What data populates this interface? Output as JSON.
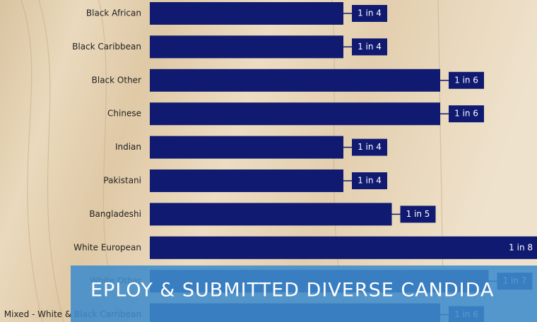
{
  "chart_data": {
    "type": "hbar",
    "categories": [
      "Black African",
      "Black Caribbean",
      "Black Other",
      "Chinese",
      "Indian",
      "Pakistani",
      "Bangladeshi",
      "White European",
      "White Other",
      "Mixed - White & Black Carribean"
    ],
    "values": [
      4,
      4,
      6,
      6,
      4,
      4,
      5,
      8,
      7,
      6
    ],
    "value_labels": [
      "1 in 4",
      "1 in 4",
      "1 in 6",
      "1 in 6",
      "1 in 4",
      "1 in 4",
      "1 in 5",
      "1 in 8",
      "1 in 7",
      "1 in 6"
    ],
    "color": "#101a70",
    "xlim": [
      0,
      8
    ]
  },
  "banner": {
    "text": "EPLOY & SUBMITTED DIVERSE CANDIDA"
  }
}
